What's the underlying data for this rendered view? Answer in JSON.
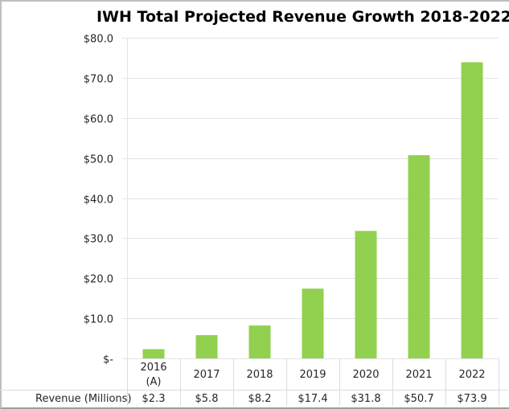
{
  "chart_data": {
    "type": "bar",
    "title": "IWH Total Projected Revenue Growth 2018-2022",
    "xlabel": "",
    "ylabel": "",
    "categories": [
      [
        "2016",
        "(A)"
      ],
      [
        "2017"
      ],
      [
        "2018"
      ],
      [
        "2019"
      ],
      [
        "2020"
      ],
      [
        "2021"
      ],
      [
        "2022"
      ]
    ],
    "series": [
      {
        "name": "Revenue (Millions)",
        "values": [
          2.3,
          5.8,
          8.2,
          17.4,
          31.8,
          50.7,
          73.9
        ],
        "color": "#92d050"
      }
    ],
    "data_table": {
      "row_label": "Revenue (Millions)",
      "values": [
        "$2.3",
        "$5.8",
        "$8.2",
        "$17.4",
        "$31.8",
        "$50.7",
        "$73.9"
      ]
    },
    "ylim": [
      0,
      80
    ],
    "yticks": [
      0,
      10,
      20,
      30,
      40,
      50,
      60,
      70,
      80
    ],
    "ytick_labels": [
      "$-",
      "$10.0",
      "$20.0",
      "$30.0",
      "$40.0",
      "$50.0",
      "$60.0",
      "$70.0",
      "$80.0"
    ],
    "grid": true,
    "legend": "none"
  }
}
